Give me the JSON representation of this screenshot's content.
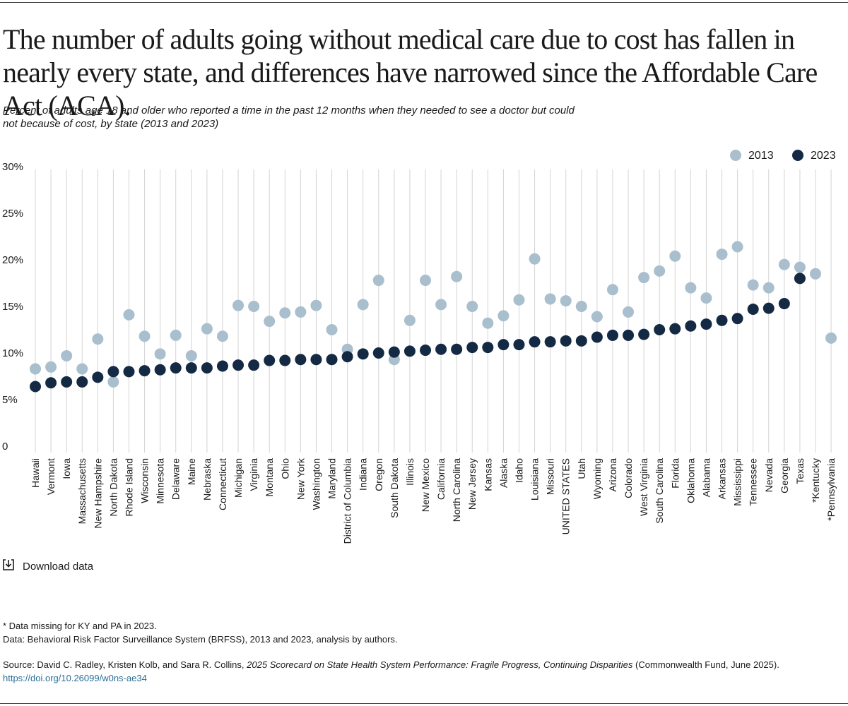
{
  "title": "The number of adults going without medical care due to cost has fallen in nearly every state, and differences have narrowed since the Affordable Care Act (ACA).",
  "subtitle": "Percent of adults age 18 and older who reported a time in the past 12 months when they needed to see a doctor but could not because of cost, by state (2013 and 2023)",
  "download_label": "Download data",
  "footnote": "* Data missing for KY and PA in 2023.",
  "data_note": "Data: Behavioral Risk Factor Surveillance System (BRFSS), 2013 and 2023, analysis by authors.",
  "source": {
    "prefix": "Source: David C. Radley, Kristen Kolb, and Sara R. Collins,",
    "publication": "2025 Scorecard on State Health System Performance: Fragile Progress, Continuing Disparities",
    "suffix": "(Commonwealth Fund, June 2025).",
    "doi": "https://doi.org/10.26099/w0ns-ae34"
  },
  "colors": {
    "series_2013": "#a9bfcd",
    "series_2023": "#142a44",
    "grid": "#d4d4d4"
  },
  "chart_data": {
    "type": "scatter",
    "ylim": [
      0,
      30
    ],
    "yticks": [
      0,
      5,
      10,
      15,
      20,
      25,
      30
    ],
    "ytick_labels": [
      "0",
      "5%",
      "10%",
      "15%",
      "20%",
      "25%",
      "30%"
    ],
    "legend_position": "top-right",
    "categories": [
      "Hawaii",
      "Vermont",
      "Iowa",
      "Massachusetts",
      "New Hampshire",
      "North Dakota",
      "Rhode Island",
      "Wisconsin",
      "Minnesota",
      "Delaware",
      "Maine",
      "Nebraska",
      "Connecticut",
      "Michigan",
      "Virginia",
      "Montana",
      "Ohio",
      "New York",
      "Washington",
      "Maryland",
      "District of Columbia",
      "Indiana",
      "Oregon",
      "South Dakota",
      "Illinois",
      "New Mexico",
      "California",
      "North Carolina",
      "New Jersey",
      "Kansas",
      "Alaska",
      "Idaho",
      "Louisiana",
      "Missouri",
      "UNITED STATES",
      "Utah",
      "Wyoming",
      "Arizona",
      "Colorado",
      "West Virginia",
      "South Carolina",
      "Florida",
      "Oklahoma",
      "Alabama",
      "Arkansas",
      "Mississippi",
      "Tennessee",
      "Nevada",
      "Georgia",
      "Texas",
      "*Kentucky",
      "*Pennsylvania"
    ],
    "series": [
      {
        "name": "2013",
        "values": [
          8.3,
          8.5,
          9.7,
          8.3,
          11.5,
          6.9,
          14.1,
          11.8,
          9.9,
          11.9,
          9.7,
          12.6,
          11.8,
          15.1,
          15.0,
          13.4,
          14.3,
          14.4,
          15.1,
          12.5,
          10.4,
          15.2,
          17.8,
          9.3,
          13.5,
          17.8,
          15.2,
          18.2,
          15.0,
          13.2,
          14.0,
          15.7,
          20.1,
          15.8,
          15.6,
          15.0,
          13.9,
          16.8,
          14.4,
          18.1,
          18.8,
          20.4,
          17.0,
          15.9,
          20.6,
          21.4,
          17.3,
          17.0,
          19.5,
          19.2,
          18.5,
          11.6
        ]
      },
      {
        "name": "2023",
        "values": [
          6.4,
          6.8,
          6.9,
          6.9,
          7.4,
          8.0,
          8.0,
          8.1,
          8.2,
          8.4,
          8.4,
          8.4,
          8.6,
          8.7,
          8.7,
          9.2,
          9.2,
          9.3,
          9.3,
          9.3,
          9.6,
          9.9,
          10.0,
          10.1,
          10.2,
          10.3,
          10.4,
          10.4,
          10.6,
          10.6,
          10.9,
          10.9,
          11.2,
          11.2,
          11.3,
          11.3,
          11.7,
          11.9,
          11.9,
          12.0,
          12.5,
          12.6,
          12.9,
          13.1,
          13.5,
          13.7,
          14.7,
          14.8,
          15.3,
          18.0,
          null,
          null
        ]
      }
    ]
  }
}
